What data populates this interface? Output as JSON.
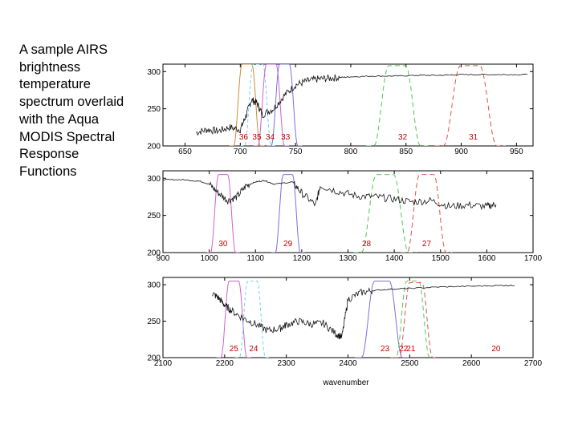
{
  "caption": "A sample AIRS brightness temperature spectrum overlaid with the Aqua MODIS Spectral Response Functions",
  "chart_data": [
    {
      "type": "line",
      "panel": "top",
      "xlabel": "",
      "ylabel": "",
      "xlim": [
        630,
        965
      ],
      "ylim": [
        200,
        310
      ],
      "xticks": [
        650,
        700,
        750,
        800,
        850,
        900,
        950
      ],
      "yticks": [
        200,
        250,
        300
      ],
      "spectrum_x": [
        660,
        670,
        680,
        690,
        700,
        705,
        710,
        715,
        720,
        730,
        740,
        750,
        760,
        770,
        780,
        790,
        800,
        820,
        840,
        860,
        880,
        900,
        920,
        940,
        960
      ],
      "spectrum_y": [
        218,
        222,
        220,
        225,
        222,
        240,
        262,
        258,
        242,
        250,
        268,
        282,
        287,
        290,
        291,
        292,
        293,
        294,
        294,
        295,
        295,
        296,
        296,
        296,
        296
      ],
      "bands": [
        {
          "label": "36",
          "center": 706,
          "halfwidth": 8,
          "peak": 310,
          "color": "#d08a3a",
          "dash": "none"
        },
        {
          "label": "35",
          "center": 716,
          "halfwidth": 8,
          "peak": 310,
          "color": "#6cd6e8",
          "dash": "4,3"
        },
        {
          "label": "34",
          "center": 728,
          "halfwidth": 8,
          "peak": 310,
          "color": "#d060d0",
          "dash": "none"
        },
        {
          "label": "33",
          "center": 740,
          "halfwidth": 8,
          "peak": 310,
          "color": "#7a70e0",
          "dash": "none"
        },
        {
          "label": "32",
          "center": 842,
          "halfwidth": 14,
          "peak": 308,
          "color": "#50c850",
          "dash": "6,4"
        },
        {
          "label": "31",
          "center": 908,
          "halfwidth": 16,
          "peak": 308,
          "color": "#e05050",
          "dash": "6,4"
        }
      ],
      "band_labels": [
        {
          "label": "36",
          "x": 703
        },
        {
          "label": "35",
          "x": 715
        },
        {
          "label": "34",
          "x": 727
        },
        {
          "label": "33",
          "x": 741
        },
        {
          "label": "32",
          "x": 847
        },
        {
          "label": "31",
          "x": 911
        }
      ]
    },
    {
      "type": "line",
      "panel": "middle",
      "xlabel": "",
      "ylabel": "",
      "xlim": [
        900,
        1700
      ],
      "ylim": [
        200,
        310
      ],
      "xticks": [
        900,
        1000,
        1100,
        1200,
        1300,
        1400,
        1500,
        1600,
        1700
      ],
      "yticks": [
        200,
        250,
        300
      ],
      "spectrum_x": [
        900,
        940,
        980,
        1000,
        1020,
        1040,
        1060,
        1080,
        1100,
        1120,
        1140,
        1180,
        1200,
        1230,
        1240,
        1280,
        1320,
        1360,
        1400,
        1440,
        1480,
        1520,
        1560,
        1600,
        1620
      ],
      "spectrum_y": [
        298,
        298,
        296,
        292,
        280,
        270,
        275,
        290,
        295,
        297,
        292,
        295,
        280,
        264,
        290,
        282,
        276,
        275,
        272,
        268,
        270,
        262,
        264,
        262,
        265
      ],
      "bands": [
        {
          "label": "30",
          "center": 1030,
          "halfwidth": 18,
          "peak": 305,
          "color": "#d060d0",
          "dash": "none"
        },
        {
          "label": "29",
          "center": 1170,
          "halfwidth": 18,
          "peak": 305,
          "color": "#7a70e0",
          "dash": "none"
        },
        {
          "label": "28",
          "center": 1380,
          "halfwidth": 34,
          "peak": 305,
          "color": "#50c850",
          "dash": "6,4"
        },
        {
          "label": "27",
          "center": 1470,
          "halfwidth": 28,
          "peak": 305,
          "color": "#e05050",
          "dash": "6,4"
        }
      ],
      "band_labels": [
        {
          "label": "30",
          "x": 1030
        },
        {
          "label": "29",
          "x": 1170
        },
        {
          "label": "28",
          "x": 1340
        },
        {
          "label": "27",
          "x": 1470
        }
      ]
    },
    {
      "type": "line",
      "panel": "bottom",
      "xlabel": "wavenumber",
      "ylabel": "",
      "xlim": [
        2100,
        2700
      ],
      "ylim": [
        200,
        310
      ],
      "xticks": [
        2100,
        2200,
        2300,
        2400,
        2500,
        2600,
        2700
      ],
      "yticks": [
        200,
        250,
        300
      ],
      "spectrum_x": [
        2180,
        2190,
        2200,
        2210,
        2230,
        2250,
        2270,
        2290,
        2300,
        2320,
        2340,
        2360,
        2380,
        2390,
        2400,
        2420,
        2440,
        2470,
        2500,
        2550,
        2600,
        2650,
        2670
      ],
      "spectrum_y": [
        288,
        282,
        272,
        265,
        254,
        246,
        237,
        240,
        245,
        250,
        246,
        247,
        233,
        228,
        280,
        289,
        292,
        294,
        295,
        297,
        298,
        299,
        299
      ],
      "bands": [
        {
          "label": "25",
          "center": 2215,
          "halfwidth": 14,
          "peak": 305,
          "color": "#d060d0",
          "dash": "none"
        },
        {
          "label": "24",
          "center": 2245,
          "halfwidth": 14,
          "peak": 305,
          "color": "#6cd6e8",
          "dash": "4,3"
        },
        {
          "label": "23",
          "center": 2455,
          "halfwidth": 22,
          "peak": 305,
          "color": "#7a70e0",
          "dash": "none"
        },
        {
          "label": "22",
          "center": 2505,
          "halfwidth": 18,
          "peak": 305,
          "color": "#50c850",
          "dash": "6,4"
        },
        {
          "label": "21",
          "center": 2510,
          "halfwidth": 18,
          "peak": 303,
          "color": "#e05050",
          "dash": "6,4"
        },
        {
          "label": "20",
          "center": 2640,
          "halfwidth": 16,
          "peak": 305,
          "color": "#e05050",
          "dash": "none",
          "hidden": true
        }
      ],
      "band_labels": [
        {
          "label": "25",
          "x": 2215
        },
        {
          "label": "24",
          "x": 2247
        },
        {
          "label": "23",
          "x": 2460
        },
        {
          "label": "22",
          "x": 2490
        },
        {
          "label": "21",
          "x": 2502
        },
        {
          "label": "20",
          "x": 2640
        }
      ]
    }
  ]
}
